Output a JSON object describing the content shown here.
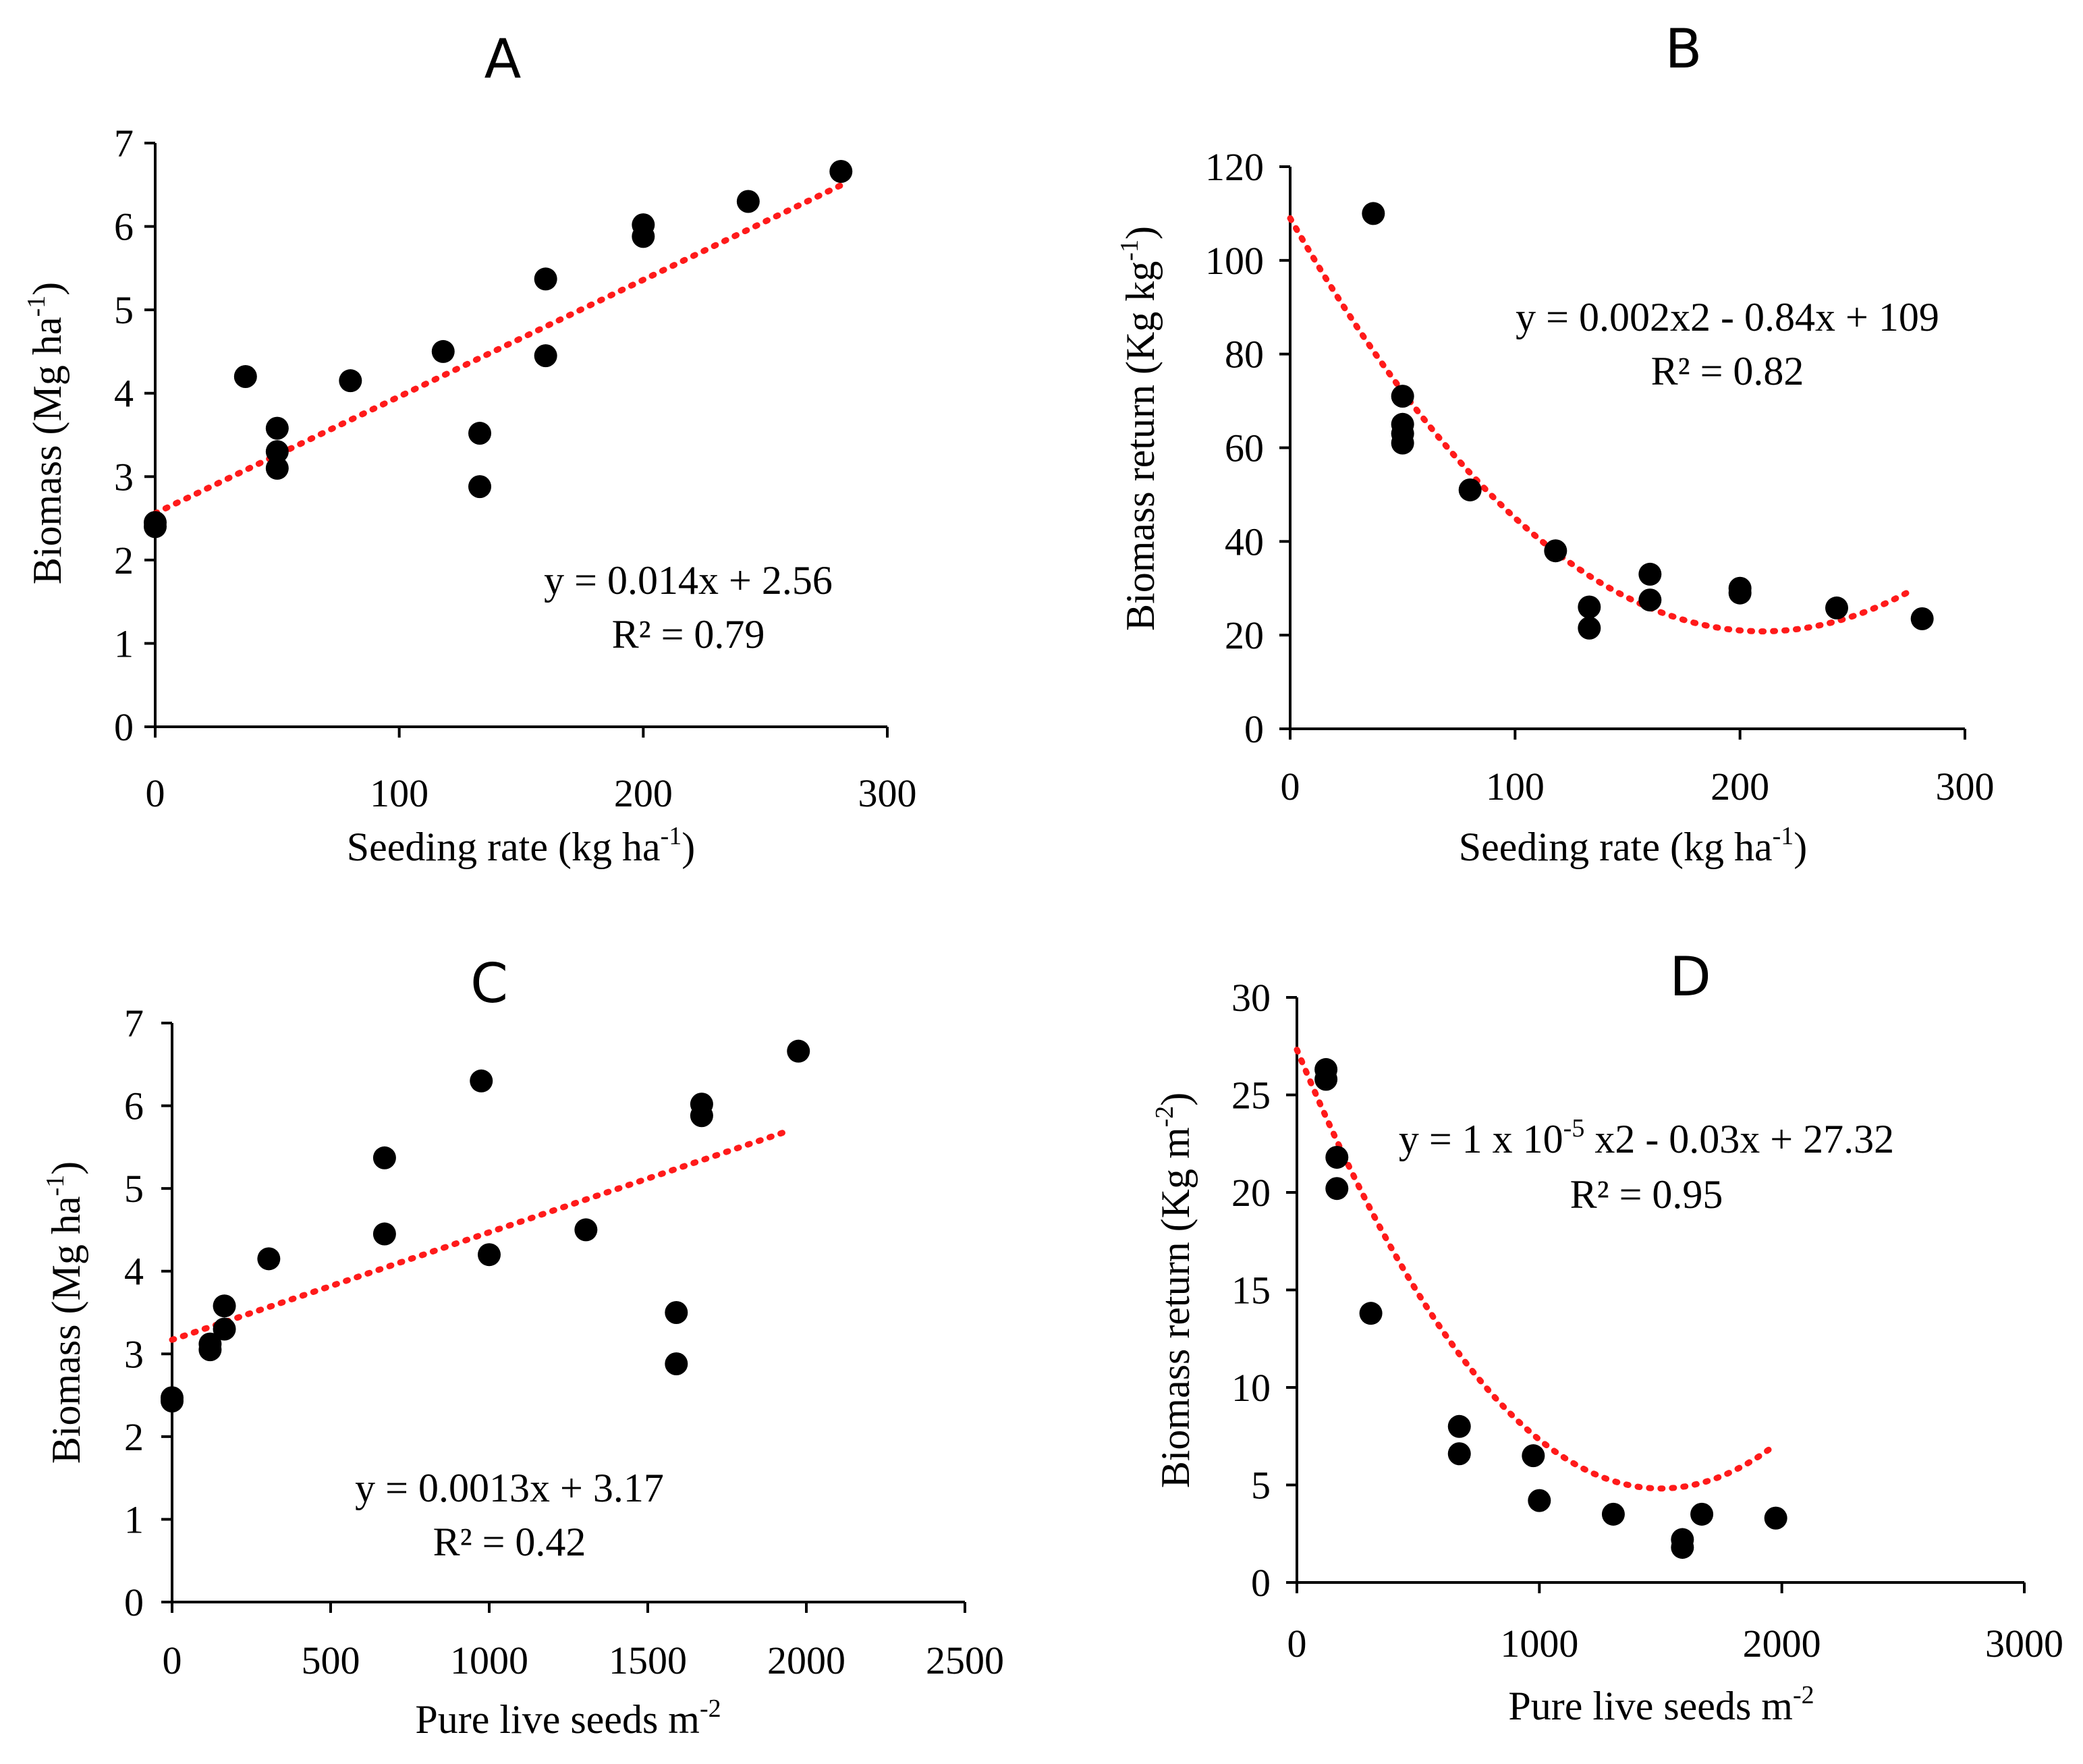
{
  "chart_data": [
    {
      "id": "A",
      "type": "scatter",
      "title": "A",
      "xlabel_main": "Seeding rate (kg ha",
      "xlabel_sup": "-1",
      "xlabel_end": ")",
      "ylabel_main": "Biomass (Mg ha",
      "ylabel_sup": "-1",
      "ylabel_end": ")",
      "xlim": [
        0,
        300
      ],
      "ylim": [
        0,
        7
      ],
      "xticks": [
        0,
        100,
        200,
        300
      ],
      "yticks": [
        0,
        1,
        2,
        3,
        4,
        5,
        6,
        7
      ],
      "points": [
        [
          0,
          2.45
        ],
        [
          0,
          2.4
        ],
        [
          37,
          4.2
        ],
        [
          50,
          3.58
        ],
        [
          50,
          3.3
        ],
        [
          50,
          3.1
        ],
        [
          80,
          4.15
        ],
        [
          118,
          4.5
        ],
        [
          133,
          3.52
        ],
        [
          133,
          2.88
        ],
        [
          160,
          5.37
        ],
        [
          160,
          4.45
        ],
        [
          200,
          6.02
        ],
        [
          200,
          5.88
        ],
        [
          243,
          6.3
        ],
        [
          281,
          6.66
        ]
      ],
      "trendline": {
        "type": "linear",
        "coeffs": [
          2.56,
          0.014
        ],
        "x_range": [
          0,
          281
        ]
      },
      "equation": "y = 0.014x + 2.56",
      "r2_label": "R² = 0.79"
    },
    {
      "id": "B",
      "type": "scatter",
      "title": "B",
      "xlabel_main": "Seeding rate (kg ha",
      "xlabel_sup": "-1",
      "xlabel_end": ")",
      "ylabel_main": "Biomass return (Kg kg",
      "ylabel_sup": "-1",
      "ylabel_end": ")",
      "xlim": [
        0,
        300
      ],
      "ylim": [
        0,
        120
      ],
      "xticks": [
        0,
        100,
        200,
        300
      ],
      "yticks": [
        0,
        20,
        40,
        60,
        80,
        100,
        120
      ],
      "points": [
        [
          37,
          110
        ],
        [
          50,
          71
        ],
        [
          50,
          65
        ],
        [
          50,
          63
        ],
        [
          50,
          61
        ],
        [
          80,
          51
        ],
        [
          118,
          38
        ],
        [
          133,
          26
        ],
        [
          133,
          21.5
        ],
        [
          160,
          33
        ],
        [
          160,
          27.5
        ],
        [
          200,
          30
        ],
        [
          200,
          29
        ],
        [
          243,
          25.8
        ],
        [
          281,
          23.5
        ]
      ],
      "trendline": {
        "type": "quadratic",
        "coeffs": [
          109,
          -0.84,
          0.002
        ],
        "x_range": [
          0,
          275
        ]
      },
      "equation": "y = 0.002x2 - 0.84x + 109",
      "r2_label": "R² = 0.82"
    },
    {
      "id": "C",
      "type": "scatter",
      "title": "C",
      "xlabel_main": "Pure live seeds m",
      "xlabel_sup": "-2",
      "xlabel_end": "",
      "ylabel_main": "Biomass (Mg ha",
      "ylabel_sup": "-1",
      "ylabel_end": ")",
      "xlim": [
        0,
        2500
      ],
      "ylim": [
        0,
        7
      ],
      "xticks": [
        0,
        500,
        1000,
        1500,
        2000,
        2500
      ],
      "yticks": [
        0,
        1,
        2,
        3,
        4,
        5,
        6,
        7
      ],
      "points": [
        [
          0,
          2.47
        ],
        [
          0,
          2.43
        ],
        [
          120,
          3.12
        ],
        [
          120,
          3.05
        ],
        [
          165,
          3.58
        ],
        [
          165,
          3.3
        ],
        [
          305,
          4.15
        ],
        [
          670,
          5.37
        ],
        [
          670,
          4.45
        ],
        [
          975,
          6.3
        ],
        [
          1000,
          4.2
        ],
        [
          1305,
          4.5
        ],
        [
          1590,
          3.5
        ],
        [
          1590,
          2.88
        ],
        [
          1670,
          6.02
        ],
        [
          1670,
          5.88
        ],
        [
          1975,
          6.66
        ]
      ],
      "trendline": {
        "type": "linear",
        "coeffs": [
          3.17,
          0.0013
        ],
        "x_range": [
          0,
          1950
        ]
      },
      "equation": "y = 0.0013x + 3.17",
      "r2_label": "R² = 0.42"
    },
    {
      "id": "D",
      "type": "scatter",
      "title": "D",
      "xlabel_main": "Pure live seeds m",
      "xlabel_sup": "-2",
      "xlabel_end": "",
      "ylabel_main": "Biomass return (Kg m",
      "ylabel_sup": "-2",
      "ylabel_end": ")",
      "xlim": [
        0,
        3000
      ],
      "ylim": [
        0,
        30
      ],
      "xticks": [
        0,
        1000,
        2000,
        3000
      ],
      "yticks": [
        0,
        5,
        10,
        15,
        20,
        25,
        30
      ],
      "points": [
        [
          120,
          26.3
        ],
        [
          120,
          25.8
        ],
        [
          165,
          21.8
        ],
        [
          165,
          20.2
        ],
        [
          305,
          13.8
        ],
        [
          670,
          8.0
        ],
        [
          670,
          6.6
        ],
        [
          975,
          6.5
        ],
        [
          1000,
          4.2
        ],
        [
          1305,
          3.5
        ],
        [
          1590,
          2.2
        ],
        [
          1590,
          1.8
        ],
        [
          1670,
          3.5
        ],
        [
          1975,
          3.3
        ]
      ],
      "trendline": {
        "type": "quadratic",
        "coeffs": [
          27.32,
          -0.03,
          1e-05
        ],
        "x_range": [
          0,
          1950
        ]
      },
      "equation_pre": "y = 1 x 10",
      "equation_sup": "-5",
      "equation_post": " x2 - 0.03x + 27.32",
      "r2_label": "R² = 0.95"
    }
  ]
}
